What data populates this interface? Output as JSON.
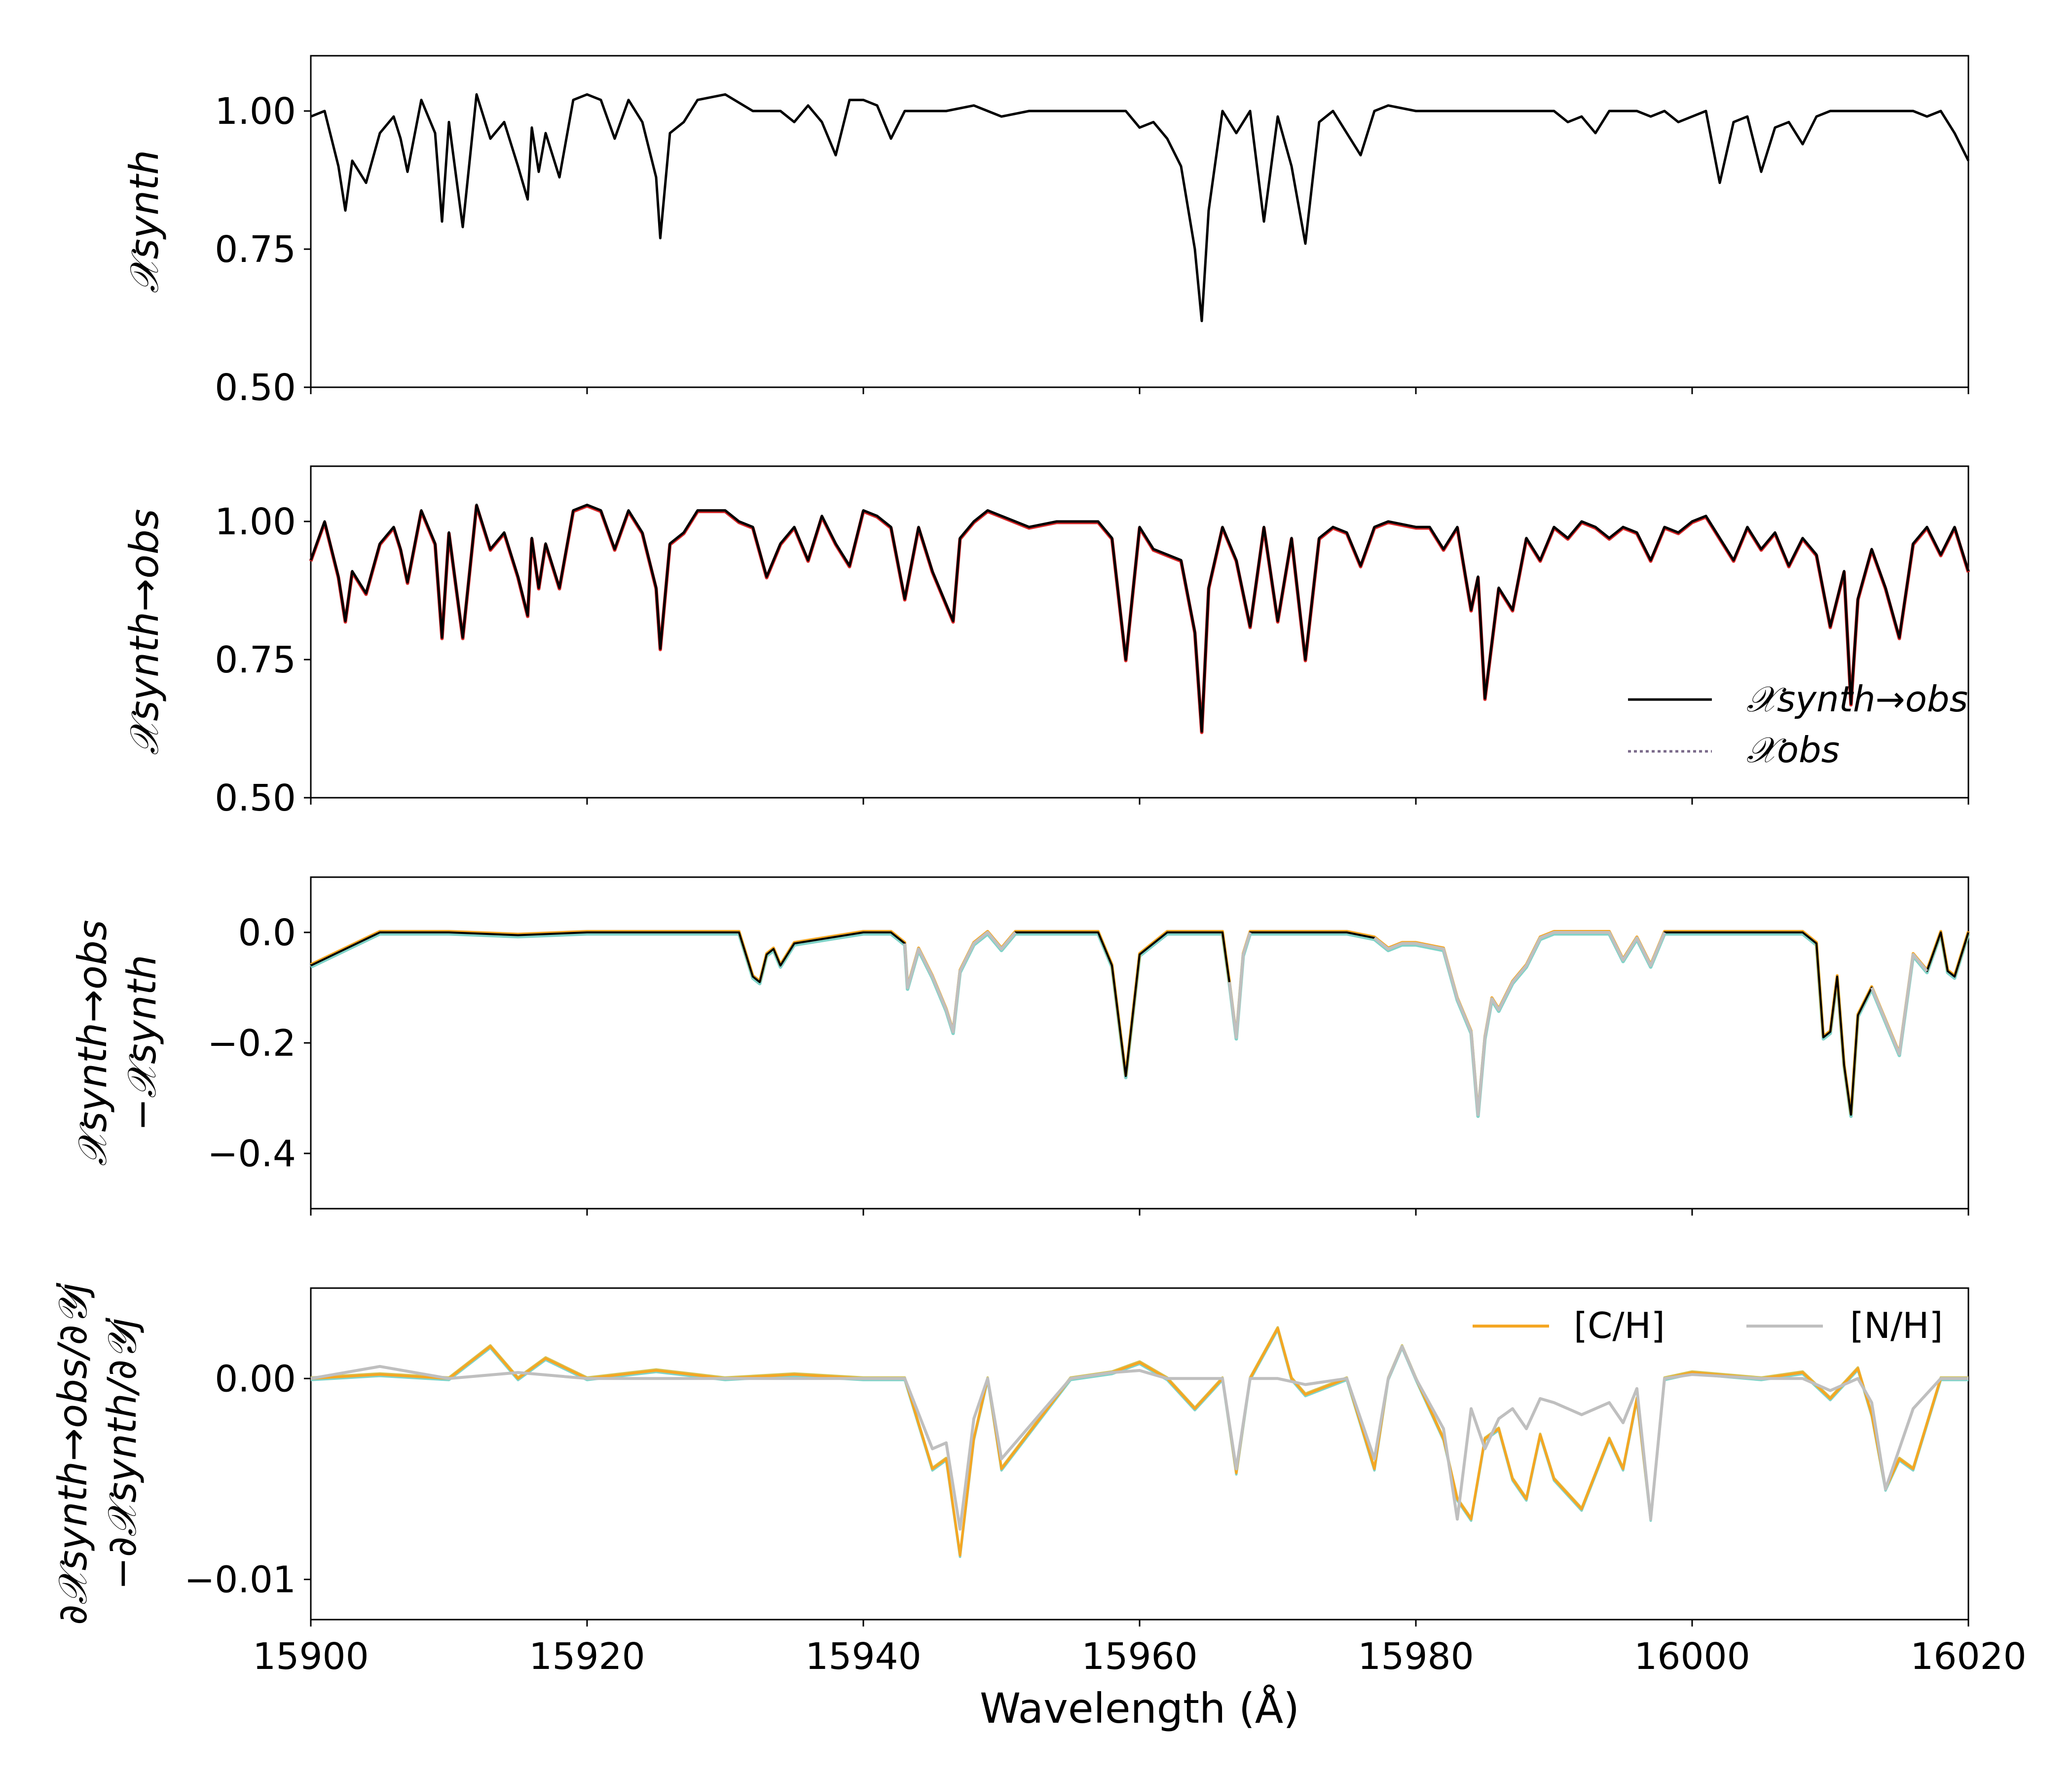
{
  "figure": {
    "xlabel": "Wavelength (Å)",
    "xlim": [
      15900,
      16020
    ],
    "xticks": [
      15900,
      15920,
      15940,
      15960,
      15980,
      16000,
      16020
    ],
    "colors": {
      "synth": "#000000",
      "obs": "#d62728",
      "ch": "#f5a623",
      "ch2": "#d4c65a",
      "nh": "#bfbfbf",
      "teal": "#7fd3c8"
    }
  },
  "panels": [
    {
      "id": "p1",
      "ylabel": "𝒳synth",
      "ylim": [
        0.5,
        1.1
      ],
      "yticks": [
        "1.00",
        "0.75",
        "0.50"
      ],
      "ytick_values": [
        1.0,
        0.75,
        0.5
      ]
    },
    {
      "id": "p2",
      "ylabel": "𝒳synth→obs",
      "ylim": [
        0.5,
        1.1
      ],
      "yticks": [
        "1.00",
        "0.75",
        "0.50"
      ],
      "ytick_values": [
        1.0,
        0.75,
        0.5
      ],
      "legend": [
        "𝒳synth→obs",
        "𝒳obs"
      ]
    },
    {
      "id": "p3",
      "ylabel_line1": "𝒳synth→obs",
      "ylabel_line2": "−𝒳synth",
      "ylim": [
        -0.5,
        0.1
      ],
      "yticks": [
        "0.0",
        "−0.2",
        "−0.4"
      ],
      "ytick_values": [
        0.0,
        -0.2,
        -0.4
      ]
    },
    {
      "id": "p4",
      "ylabel_line1": "∂𝒳synth→obs/∂𝒴j",
      "ylabel_line2": "−∂𝒳synth/∂𝒴j",
      "ylim": [
        -0.012,
        0.0045
      ],
      "yticks": [
        "0.00",
        "−0.01"
      ],
      "ytick_values": [
        0.0,
        -0.01
      ],
      "legend": [
        "[C/H]",
        "[N/H]"
      ]
    }
  ],
  "chart_data": [
    {
      "type": "line",
      "panel": "p1",
      "series": [
        {
          "x": [
            15900,
            15901,
            15902,
            15902.5,
            15903,
            15904,
            15905,
            15906,
            15906.5,
            15907,
            15908,
            15909,
            15909.5,
            15910,
            15911,
            15912,
            15913,
            15914,
            15915,
            15915.7,
            15916,
            15916.5,
            15917,
            15918,
            15919,
            15920,
            15921,
            15922,
            15923,
            15924,
            15925,
            15925.3,
            15926,
            15927,
            15928,
            15930,
            15932,
            15934,
            15935,
            15936,
            15937,
            15938,
            15939,
            15940,
            15941,
            15942,
            15943,
            15944,
            15946,
            15948,
            15949,
            15950,
            15952,
            15954,
            15956,
            15958,
            15959,
            15960,
            15961,
            15962,
            15963,
            15964,
            15964.5,
            15965,
            15966,
            15967,
            15968,
            15969,
            15970,
            15971,
            15972,
            15973,
            15974,
            15975,
            15976,
            15977,
            15978,
            15980,
            15985,
            15990,
            15991,
            15992,
            15993,
            15994,
            15995,
            15996,
            15997,
            15998,
            15999,
            16000,
            16001,
            16002,
            16003,
            16004,
            16005,
            16006,
            16007,
            16008,
            16009,
            16010,
            16012,
            16014,
            16016,
            16017,
            16018,
            16019,
            16020
          ],
          "y": [
            0.99,
            1.0,
            0.9,
            0.82,
            0.91,
            0.87,
            0.96,
            0.99,
            0.95,
            0.89,
            1.02,
            0.96,
            0.8,
            0.98,
            0.79,
            1.03,
            0.95,
            0.98,
            0.9,
            0.84,
            0.97,
            0.89,
            0.96,
            0.88,
            1.02,
            1.03,
            1.02,
            0.95,
            1.02,
            0.98,
            0.88,
            0.77,
            0.96,
            0.98,
            1.02,
            1.03,
            1.0,
            1.0,
            0.98,
            1.01,
            0.98,
            0.92,
            1.02,
            1.02,
            1.01,
            0.95,
            1.0,
            1.0,
            1.0,
            1.01,
            1.0,
            0.99,
            1.0,
            1.0,
            1.0,
            1.0,
            1.0,
            0.97,
            0.98,
            0.95,
            0.9,
            0.75,
            0.62,
            0.82,
            1.0,
            0.96,
            1.0,
            0.8,
            0.99,
            0.9,
            0.76,
            0.98,
            1.0,
            0.96,
            0.92,
            1.0,
            1.01,
            1.0,
            1.0,
            1.0,
            0.98,
            0.99,
            0.96,
            1.0,
            1.0,
            1.0,
            0.99,
            1.0,
            0.98,
            0.99,
            1.0,
            0.87,
            0.98,
            0.99,
            0.89,
            0.97,
            0.98,
            0.94,
            0.99,
            1.0,
            1.0,
            1.0,
            1.0,
            0.99,
            1.0,
            0.96,
            0.91
          ]
        }
      ]
    },
    {
      "type": "line",
      "panel": "p2",
      "series": [
        {
          "x": [
            15900,
            15901,
            15902,
            15902.5,
            15903,
            15904,
            15905,
            15906,
            15906.5,
            15907,
            15908,
            15909,
            15909.5,
            15910,
            15911,
            15912,
            15913,
            15914,
            15915,
            15915.7,
            15916,
            15916.5,
            15917,
            15918,
            15919,
            15920,
            15921,
            15922,
            15923,
            15924,
            15925,
            15925.3,
            15926,
            15927,
            15928,
            15930,
            15931,
            15932,
            15933,
            15934,
            15935,
            15936,
            15937,
            15938,
            15939,
            15940,
            15941,
            15942,
            15943,
            15944,
            15945,
            15946,
            15946.5,
            15947,
            15948,
            15949,
            15950,
            15952,
            15954,
            15956,
            15957,
            15958,
            15959,
            15960,
            15961,
            15962,
            15963,
            15964,
            15964.5,
            15965,
            15966,
            15967,
            15968,
            15969,
            15970,
            15971,
            15972,
            15973,
            15974,
            15975,
            15976,
            15977,
            15978,
            15980,
            15981,
            15982,
            15983,
            15984,
            15984.5,
            15985,
            15986,
            15987,
            15988,
            15989,
            15990,
            15991,
            15992,
            15993,
            15994,
            15995,
            15996,
            15997,
            15998,
            15999,
            16000,
            16001,
            16002,
            16003,
            16004,
            16005,
            16006,
            16007,
            16008,
            16009,
            16010,
            16011,
            16011.5,
            16012,
            16013,
            16014,
            16015,
            16016,
            16017,
            16018,
            16019,
            16020
          ],
          "y": [
            0.93,
            1.0,
            0.9,
            0.82,
            0.91,
            0.87,
            0.96,
            0.99,
            0.95,
            0.89,
            1.02,
            0.96,
            0.79,
            0.98,
            0.79,
            1.03,
            0.95,
            0.98,
            0.9,
            0.83,
            0.97,
            0.88,
            0.96,
            0.88,
            1.02,
            1.03,
            1.02,
            0.95,
            1.02,
            0.98,
            0.88,
            0.77,
            0.96,
            0.98,
            1.02,
            1.02,
            1.0,
            0.99,
            0.9,
            0.96,
            0.99,
            0.93,
            1.01,
            0.96,
            0.92,
            1.02,
            1.01,
            0.99,
            0.86,
            0.99,
            0.91,
            0.85,
            0.82,
            0.97,
            1.0,
            1.02,
            1.01,
            0.99,
            1.0,
            1.0,
            1.0,
            0.97,
            0.75,
            0.99,
            0.95,
            0.94,
            0.93,
            0.8,
            0.62,
            0.88,
            0.99,
            0.93,
            0.81,
            0.99,
            0.82,
            0.97,
            0.75,
            0.97,
            0.99,
            0.98,
            0.92,
            0.99,
            1.0,
            0.99,
            0.99,
            0.95,
            0.99,
            0.84,
            0.9,
            0.68,
            0.88,
            0.84,
            0.97,
            0.93,
            0.99,
            0.97,
            1.0,
            0.99,
            0.97,
            0.99,
            0.98,
            0.93,
            0.99,
            0.98,
            1.0,
            1.01,
            0.97,
            0.93,
            0.99,
            0.95,
            0.98,
            0.92,
            0.97,
            0.94,
            0.81,
            0.91,
            0.67,
            0.86,
            0.95,
            0.88,
            0.79,
            0.96,
            0.99,
            0.94,
            0.99,
            0.91
          ]
        }
      ]
    },
    {
      "type": "line",
      "panel": "p3",
      "series": [
        {
          "x": [
            15900,
            15905,
            15910,
            15915,
            15920,
            15925,
            15931,
            15932,
            15932.5,
            15933,
            15933.5,
            15934,
            15935,
            15940,
            15942,
            15943,
            15943.2,
            15944,
            15945,
            15946,
            15946.5,
            15947,
            15948,
            15949,
            15950,
            15951,
            15955,
            15957,
            15958,
            15959,
            15960,
            15962,
            15966,
            15966.5,
            15967,
            15967.5,
            15968,
            15970,
            15975,
            15977,
            15978,
            15979,
            15980,
            15982,
            15983,
            15984,
            15984.5,
            15985,
            15985.5,
            15986,
            15987,
            15988,
            15989,
            15990,
            15992,
            15994,
            15995,
            15996,
            15997,
            15998,
            16000,
            16005,
            16008,
            16009,
            16009.5,
            16010,
            16010.5,
            16011,
            16011.5,
            16012,
            16013,
            16014,
            16015,
            16016,
            16017,
            16018,
            16018.5,
            16019,
            16020
          ],
          "y": [
            -0.06,
            0.0,
            0.0,
            -0.005,
            0.0,
            0.0,
            0.0,
            -0.08,
            -0.09,
            -0.04,
            -0.03,
            -0.06,
            -0.02,
            0.0,
            0.0,
            -0.02,
            -0.1,
            -0.03,
            -0.08,
            -0.14,
            -0.18,
            -0.07,
            -0.02,
            0.0,
            -0.03,
            0.0,
            0.0,
            0.0,
            -0.06,
            -0.26,
            -0.04,
            0.0,
            0.0,
            -0.09,
            -0.19,
            -0.04,
            0.0,
            0.0,
            0.0,
            -0.01,
            -0.03,
            -0.02,
            -0.02,
            -0.03,
            -0.12,
            -0.18,
            -0.33,
            -0.19,
            -0.12,
            -0.14,
            -0.09,
            -0.06,
            -0.01,
            0.0,
            0.0,
            0.0,
            -0.05,
            -0.01,
            -0.06,
            0.0,
            0.0,
            0.0,
            0.0,
            -0.02,
            -0.19,
            -0.18,
            -0.08,
            -0.24,
            -0.33,
            -0.15,
            -0.1,
            -0.16,
            -0.22,
            -0.04,
            -0.07,
            0.0,
            -0.07,
            -0.08,
            0.0
          ]
        }
      ]
    },
    {
      "type": "line",
      "panel": "p4",
      "series": [
        {
          "name": "[C/H]",
          "x": [
            15900,
            15905,
            15910,
            15913,
            15915,
            15917,
            15920,
            15925,
            15930,
            15935,
            15940,
            15943,
            15945,
            15946,
            15947,
            15948,
            15949,
            15950,
            15955,
            15958,
            15960,
            15962,
            15964,
            15966,
            15967,
            15968,
            15970,
            15971,
            15972,
            15975,
            15977,
            15978,
            15979,
            15980,
            15982,
            15983,
            15984,
            15985,
            15986,
            15987,
            15988,
            15989,
            15990,
            15992,
            15994,
            15995,
            15996,
            15997,
            15998,
            16000,
            16005,
            16008,
            16010,
            16012,
            16013,
            16014,
            16015,
            16016,
            16018,
            16020
          ],
          "y": [
            0.0,
            0.0002,
            0.0,
            0.0016,
            0.0,
            0.001,
            0.0,
            0.0004,
            0.0,
            0.0002,
            0.0,
            0.0,
            -0.0045,
            -0.004,
            -0.0088,
            -0.003,
            0.0,
            -0.0045,
            0.0,
            0.0003,
            0.0008,
            0.0,
            -0.0015,
            0.0,
            -0.0047,
            0.0,
            0.0025,
            0.0,
            -0.0008,
            0.0,
            -0.0045,
            0.0,
            0.0016,
            0.0,
            -0.003,
            -0.006,
            -0.007,
            -0.003,
            -0.0025,
            -0.005,
            -0.006,
            -0.0028,
            -0.005,
            -0.0065,
            -0.003,
            -0.0045,
            -0.001,
            -0.007,
            0.0,
            0.0003,
            0.0,
            0.0003,
            -0.001,
            0.0005,
            -0.0018,
            -0.0055,
            -0.004,
            -0.0045,
            0.0,
            0.0
          ]
        },
        {
          "name": "[N/H]",
          "x": [
            15900,
            15905,
            15910,
            15915,
            15920,
            15925,
            15930,
            15935,
            15940,
            15943,
            15945,
            15946,
            15947,
            15948,
            15949,
            15950,
            15955,
            15958,
            15960,
            15962,
            15964,
            15966,
            15967,
            15968,
            15970,
            15972,
            15975,
            15977,
            15978,
            15979,
            15980,
            15982,
            15983,
            15984,
            15985,
            15986,
            15987,
            15988,
            15989,
            15990,
            15992,
            15994,
            15995,
            15996,
            15997,
            15998,
            16000,
            16005,
            16008,
            16010,
            16012,
            16013,
            16014,
            16015,
            16016,
            16018,
            16020
          ],
          "y": [
            0.0,
            0.0006,
            0.0,
            0.0003,
            0.0,
            0.0,
            0.0,
            0.0,
            0.0,
            0.0,
            -0.0035,
            -0.0032,
            -0.0075,
            -0.002,
            0.0,
            -0.004,
            0.0,
            0.0003,
            0.0004,
            0.0,
            0.0,
            0.0,
            -0.0045,
            0.0,
            0.0,
            -0.0003,
            0.0,
            -0.004,
            0.0,
            0.0016,
            0.0,
            -0.0025,
            -0.007,
            -0.0015,
            -0.0035,
            -0.002,
            -0.0015,
            -0.0025,
            -0.001,
            -0.0012,
            -0.0018,
            -0.0012,
            -0.0022,
            -0.0005,
            -0.007,
            0.0,
            0.0002,
            0.0,
            0.0,
            -0.0006,
            0.0,
            -0.0012,
            -0.0055,
            -0.0035,
            -0.0015,
            0.0,
            0.0
          ]
        }
      ]
    }
  ]
}
